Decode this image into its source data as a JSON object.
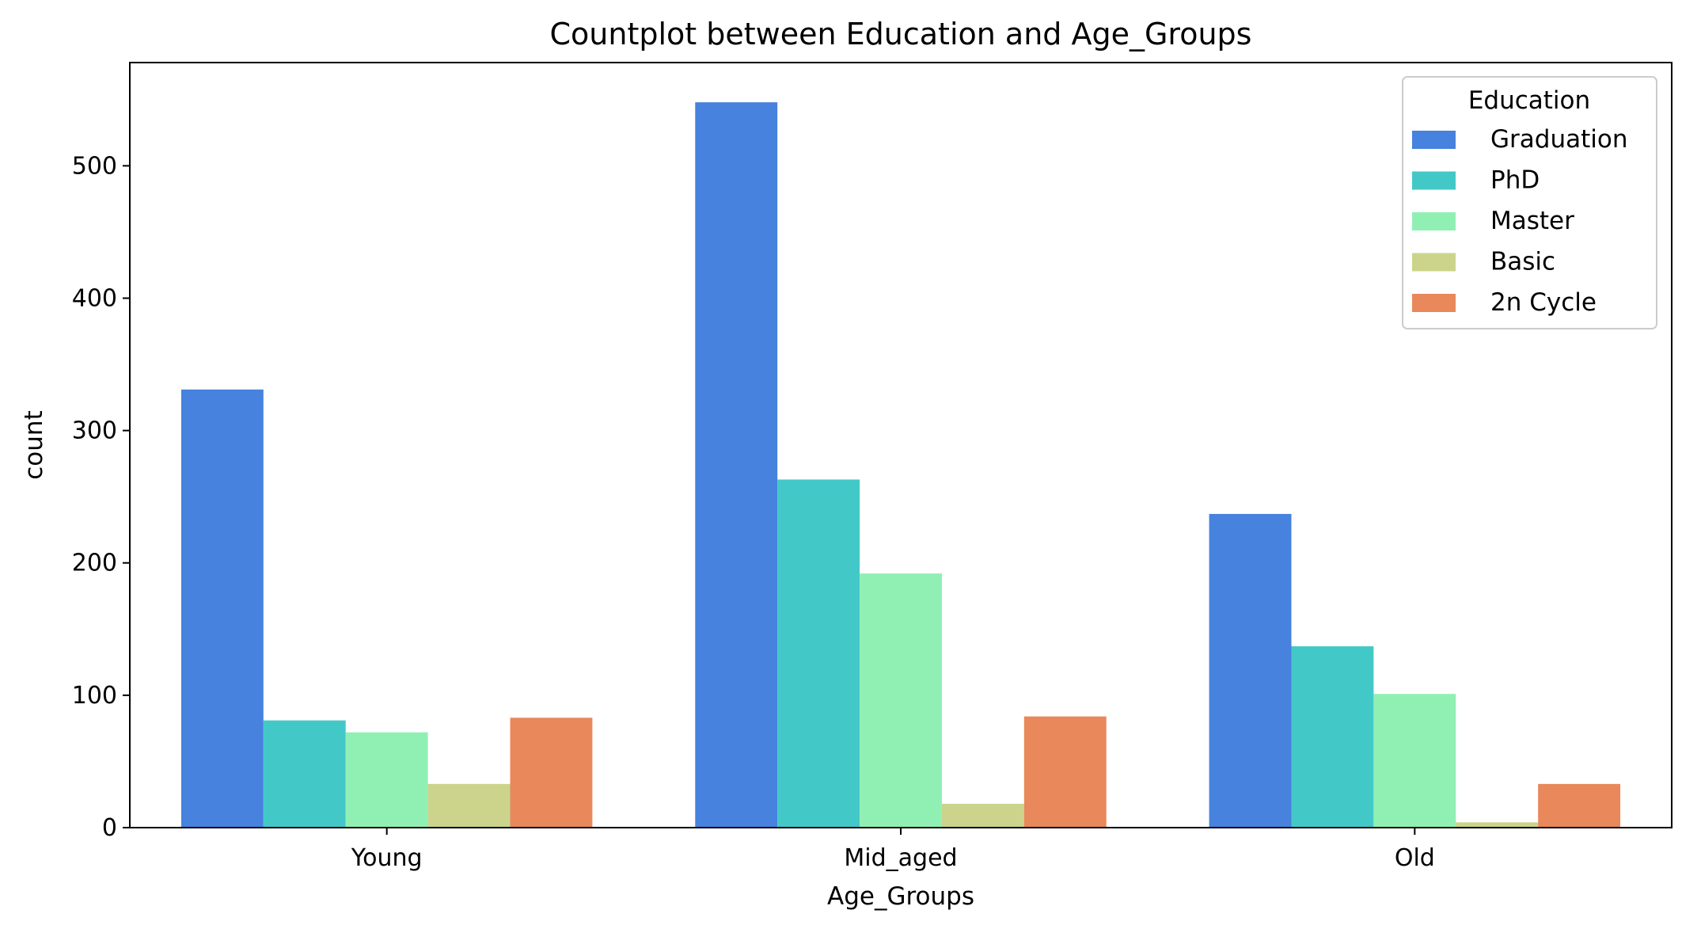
{
  "chart_data": {
    "type": "bar",
    "title": "Countplot between Education and Age_Groups",
    "xlabel": "Age_Groups",
    "ylabel": "count",
    "categories": [
      "Young",
      "Mid_aged",
      "Old"
    ],
    "ylim": [
      0,
      578
    ],
    "yticks": [
      0,
      100,
      200,
      300,
      400,
      500
    ],
    "legend": {
      "title": "Education",
      "placement": "top-right"
    },
    "series": [
      {
        "name": "Graduation",
        "color": "#4682DE",
        "values": [
          331,
          548,
          237
        ]
      },
      {
        "name": "PhD",
        "color": "#43C8C8",
        "values": [
          81,
          263,
          137
        ]
      },
      {
        "name": "Master",
        "color": "#90F0B4",
        "values": [
          72,
          192,
          101
        ]
      },
      {
        "name": "Basic",
        "color": "#CBD48A",
        "values": [
          33,
          18,
          4
        ]
      },
      {
        "name": "2n Cycle",
        "color": "#E8885B",
        "values": [
          83,
          84,
          33
        ]
      }
    ],
    "grid": false
  }
}
